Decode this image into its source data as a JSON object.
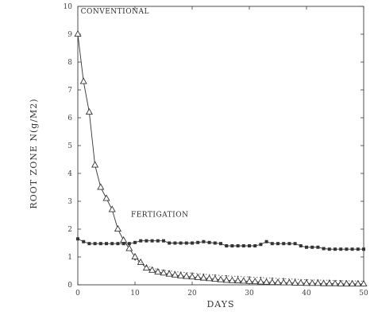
{
  "chart_data": {
    "type": "line",
    "title": "",
    "xlabel": "DAYS",
    "ylabel": "ROOT ZONE N(g/M2)",
    "xlim": [
      0,
      50
    ],
    "ylim": [
      0,
      10
    ],
    "x_ticks": [
      {
        "value": 0,
        "label": "0"
      },
      {
        "value": 10,
        "label": "10"
      },
      {
        "value": 20,
        "label": "20"
      },
      {
        "value": 30,
        "label": "30"
      },
      {
        "value": 40,
        "label": "40"
      },
      {
        "value": 50,
        "label": "50"
      }
    ],
    "y_ticks": [
      {
        "value": 0,
        "label": "0"
      },
      {
        "value": 1,
        "label": "1"
      },
      {
        "value": 2,
        "label": "2"
      },
      {
        "value": 3,
        "label": "3"
      },
      {
        "value": 4,
        "label": "4"
      },
      {
        "value": 5,
        "label": "5"
      },
      {
        "value": 6,
        "label": "6"
      },
      {
        "value": 7,
        "label": "7"
      },
      {
        "value": 8,
        "label": "8"
      },
      {
        "value": 9,
        "label": "9"
      },
      {
        "value": 10,
        "label": "10"
      }
    ],
    "grid": false,
    "legend": "none",
    "annotations": [
      {
        "text": "CONVENTIONAL",
        "x": 0.5,
        "y": 9.75
      },
      {
        "text": "FERTIGATION",
        "x": 9.3,
        "y": 2.45
      }
    ],
    "series": [
      {
        "name": "CONVENTIONAL",
        "marker": "triangle",
        "color": "#333333",
        "x": [
          0,
          1,
          2,
          3,
          4,
          5,
          6,
          7,
          8,
          9,
          10,
          11,
          12,
          13,
          14,
          15,
          16,
          17,
          18,
          19,
          20,
          21,
          22,
          23,
          24,
          25,
          26,
          27,
          28,
          29,
          30,
          31,
          32,
          33,
          34,
          35,
          36,
          37,
          38,
          39,
          40,
          41,
          42,
          43,
          44,
          45,
          46,
          47,
          48,
          49,
          50
        ],
        "y": [
          9.0,
          7.3,
          6.2,
          4.3,
          3.5,
          3.1,
          2.7,
          2.0,
          1.6,
          1.3,
          1.0,
          0.8,
          0.6,
          0.52,
          0.46,
          0.42,
          0.38,
          0.35,
          0.32,
          0.3,
          0.28,
          0.26,
          0.24,
          0.22,
          0.2,
          0.18,
          0.16,
          0.15,
          0.14,
          0.13,
          0.12,
          0.11,
          0.1,
          0.09,
          0.08,
          0.08,
          0.07,
          0.07,
          0.06,
          0.06,
          0.05,
          0.05,
          0.05,
          0.04,
          0.04,
          0.04,
          0.03,
          0.03,
          0.03,
          0.03,
          0.03
        ]
      },
      {
        "name": "FERTIGATION",
        "marker": "square",
        "color": "#333333",
        "x": [
          0,
          1,
          2,
          3,
          4,
          5,
          6,
          7,
          8,
          9,
          10,
          11,
          12,
          13,
          14,
          15,
          16,
          17,
          18,
          19,
          20,
          21,
          22,
          23,
          24,
          25,
          26,
          27,
          28,
          29,
          30,
          31,
          32,
          33,
          34,
          35,
          36,
          37,
          38,
          39,
          40,
          41,
          42,
          43,
          44,
          45,
          46,
          47,
          48,
          49,
          50
        ],
        "y": [
          1.65,
          1.55,
          1.48,
          1.48,
          1.48,
          1.48,
          1.48,
          1.48,
          1.48,
          1.48,
          1.52,
          1.58,
          1.58,
          1.58,
          1.58,
          1.58,
          1.5,
          1.5,
          1.5,
          1.5,
          1.5,
          1.52,
          1.55,
          1.52,
          1.5,
          1.48,
          1.4,
          1.4,
          1.4,
          1.4,
          1.4,
          1.4,
          1.45,
          1.55,
          1.48,
          1.48,
          1.48,
          1.48,
          1.48,
          1.4,
          1.35,
          1.35,
          1.35,
          1.3,
          1.28,
          1.28,
          1.28,
          1.28,
          1.28,
          1.28,
          1.28
        ]
      },
      {
        "name": "",
        "marker": "dot",
        "color": "#444444",
        "x": [
          10,
          12,
          14,
          16,
          18,
          20,
          22,
          24,
          26,
          28,
          30,
          32,
          34,
          36,
          38,
          40,
          42,
          44,
          46,
          48,
          50
        ],
        "y": [
          0.9,
          0.68,
          0.55,
          0.5,
          0.45,
          0.42,
          0.38,
          0.35,
          0.32,
          0.3,
          0.28,
          0.26,
          0.24,
          0.22,
          0.2,
          0.18,
          0.17,
          0.16,
          0.15,
          0.14,
          0.13
        ]
      }
    ]
  }
}
